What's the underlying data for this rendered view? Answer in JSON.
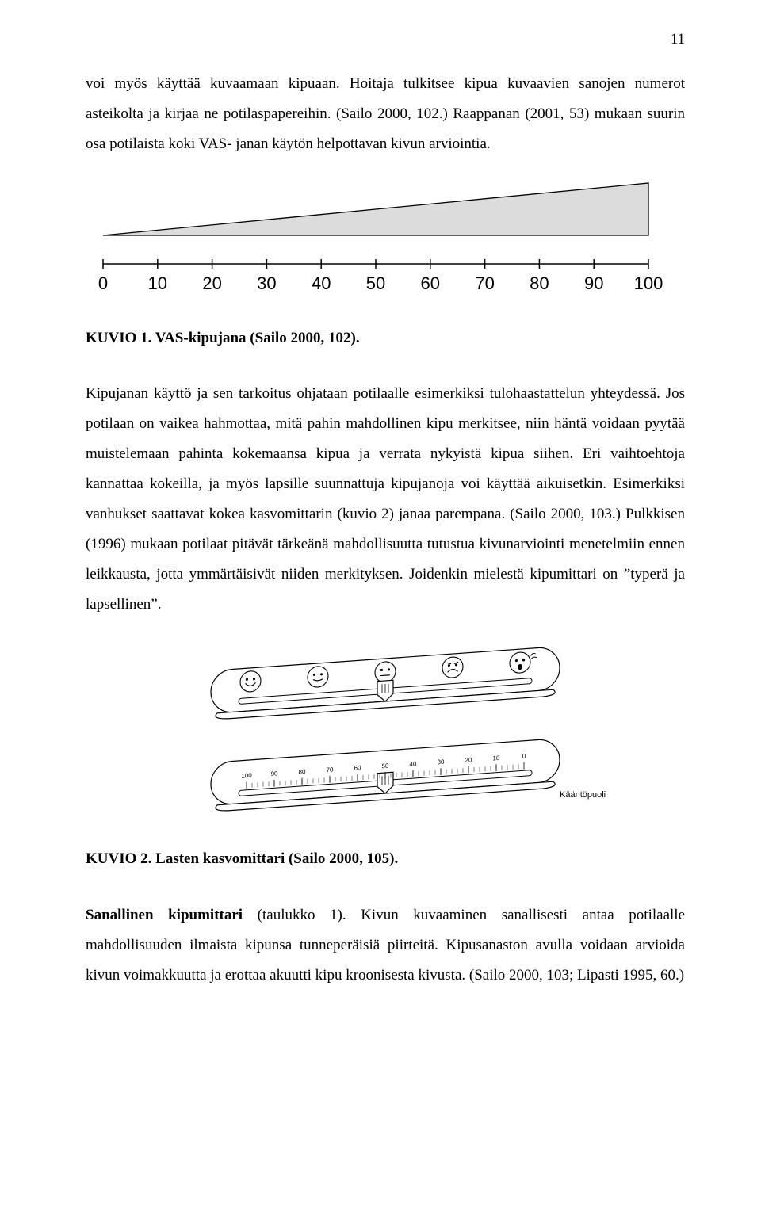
{
  "page_number": "11",
  "para1": "voi myös käyttää kuvaamaan kipuaan. Hoitaja tulkitsee kipua kuvaavien sanojen numerot asteikolta ja kirjaa ne potilaspapereihin. (Sailo 2000, 102.) Raappanan (2001, 53) mukaan suurin osa potilaista koki VAS- janan käytön helpottavan kivun arviointia.",
  "figure1": {
    "type": "infographic",
    "caption_prefix": "KUVIO 1. VAS-kipujana (Sailo 2000, 102).",
    "scale_ticks": [
      "0",
      "10",
      "20",
      "30",
      "40",
      "50",
      "60",
      "70",
      "80",
      "90",
      "100"
    ],
    "wedge_fill": "#dcdcdc",
    "wedge_stroke": "#000000",
    "axis_color": "#000000",
    "tick_fontsize": 16,
    "background_color": "#ffffff"
  },
  "para2": "Kipujanan käyttö ja sen tarkoitus ohjataan potilaalle esimerkiksi tulohaastattelun yhteydessä. Jos potilaan on vaikea hahmottaa, mitä pahin mahdollinen kipu merkitsee, niin häntä voidaan pyytää muistelemaan pahinta kokemaansa kipua ja verrata nykyistä kipua siihen. Eri vaihtoehtoja kannattaa kokeilla, ja myös lapsille suunnattuja kipujanoja voi käyttää aikuisetkin. Esimerkiksi vanhukset saattavat kokea kasvomittarin (kuvio 2) janaa parempana. (Sailo 2000, 103.) Pulkkisen (1996) mukaan potilaat pitävät tärkeänä mahdollisuutta tutustua kivunarviointi menetelmiin ennen leikkausta, jotta ymmärtäisivät niiden merkityksen. Joidenkin mielestä kipumittari on ”typerä ja lapsellinen”.",
  "figure2": {
    "type": "infographic",
    "caption_prefix": "KUVIO 2. Lasten kasvomittari (Sailo 2000, 105).",
    "front_faces": [
      "happy",
      "slightly-happy",
      "neutral",
      "unhappy",
      "crying"
    ],
    "back_scale_ticks": [
      "100",
      "90",
      "80",
      "70",
      "60",
      "50",
      "40",
      "30",
      "20",
      "10",
      "0"
    ],
    "back_label": "Kääntöpuoli",
    "stroke_color": "#000000",
    "fill_color": "#ffffff",
    "tick_fontsize": 8,
    "label_fontsize": 11
  },
  "para3_lead_bold": "Sanallinen kipumittari",
  "para3_rest": " (taulukko 1). Kivun kuvaaminen sanallisesti antaa potilaalle mahdollisuuden ilmaista kipunsa tunneperäisiä piirteitä. Kipusanaston avulla voidaan arvioida kivun voimakkuutta ja erottaa akuutti kipu kroonisesta kivusta. (Sailo 2000, 103; Lipasti 1995, 60.)"
}
